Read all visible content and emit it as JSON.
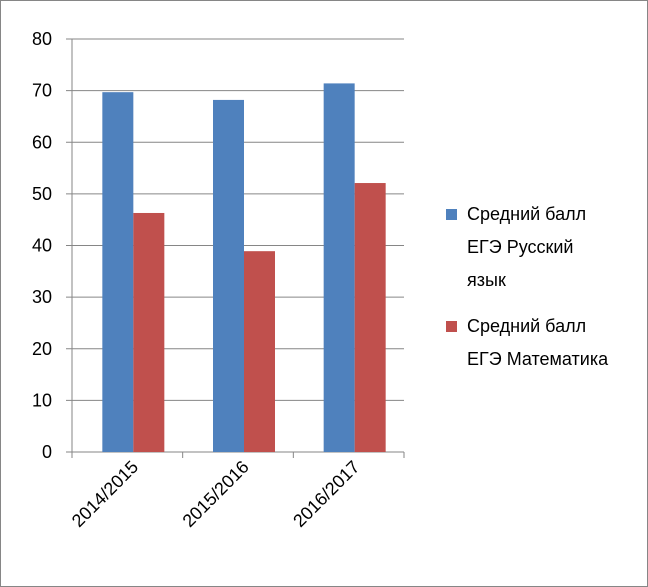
{
  "chart_data": {
    "type": "bar",
    "categories": [
      "2014/2015",
      "2015/2016",
      "2016/2017"
    ],
    "series": [
      {
        "name": "Средний балл ЕГЭ Русский язык",
        "color": "#4f81bd",
        "values": [
          69.7,
          68.2,
          71.4
        ]
      },
      {
        "name": "Средний балл ЕГЭ Математика",
        "color": "#c0504d",
        "values": [
          46.3,
          38.9,
          52.1
        ]
      }
    ],
    "ylim": [
      0,
      80
    ],
    "yticks": [
      0,
      10,
      20,
      30,
      40,
      50,
      60,
      70,
      80
    ],
    "grid": true,
    "legend": "right"
  }
}
